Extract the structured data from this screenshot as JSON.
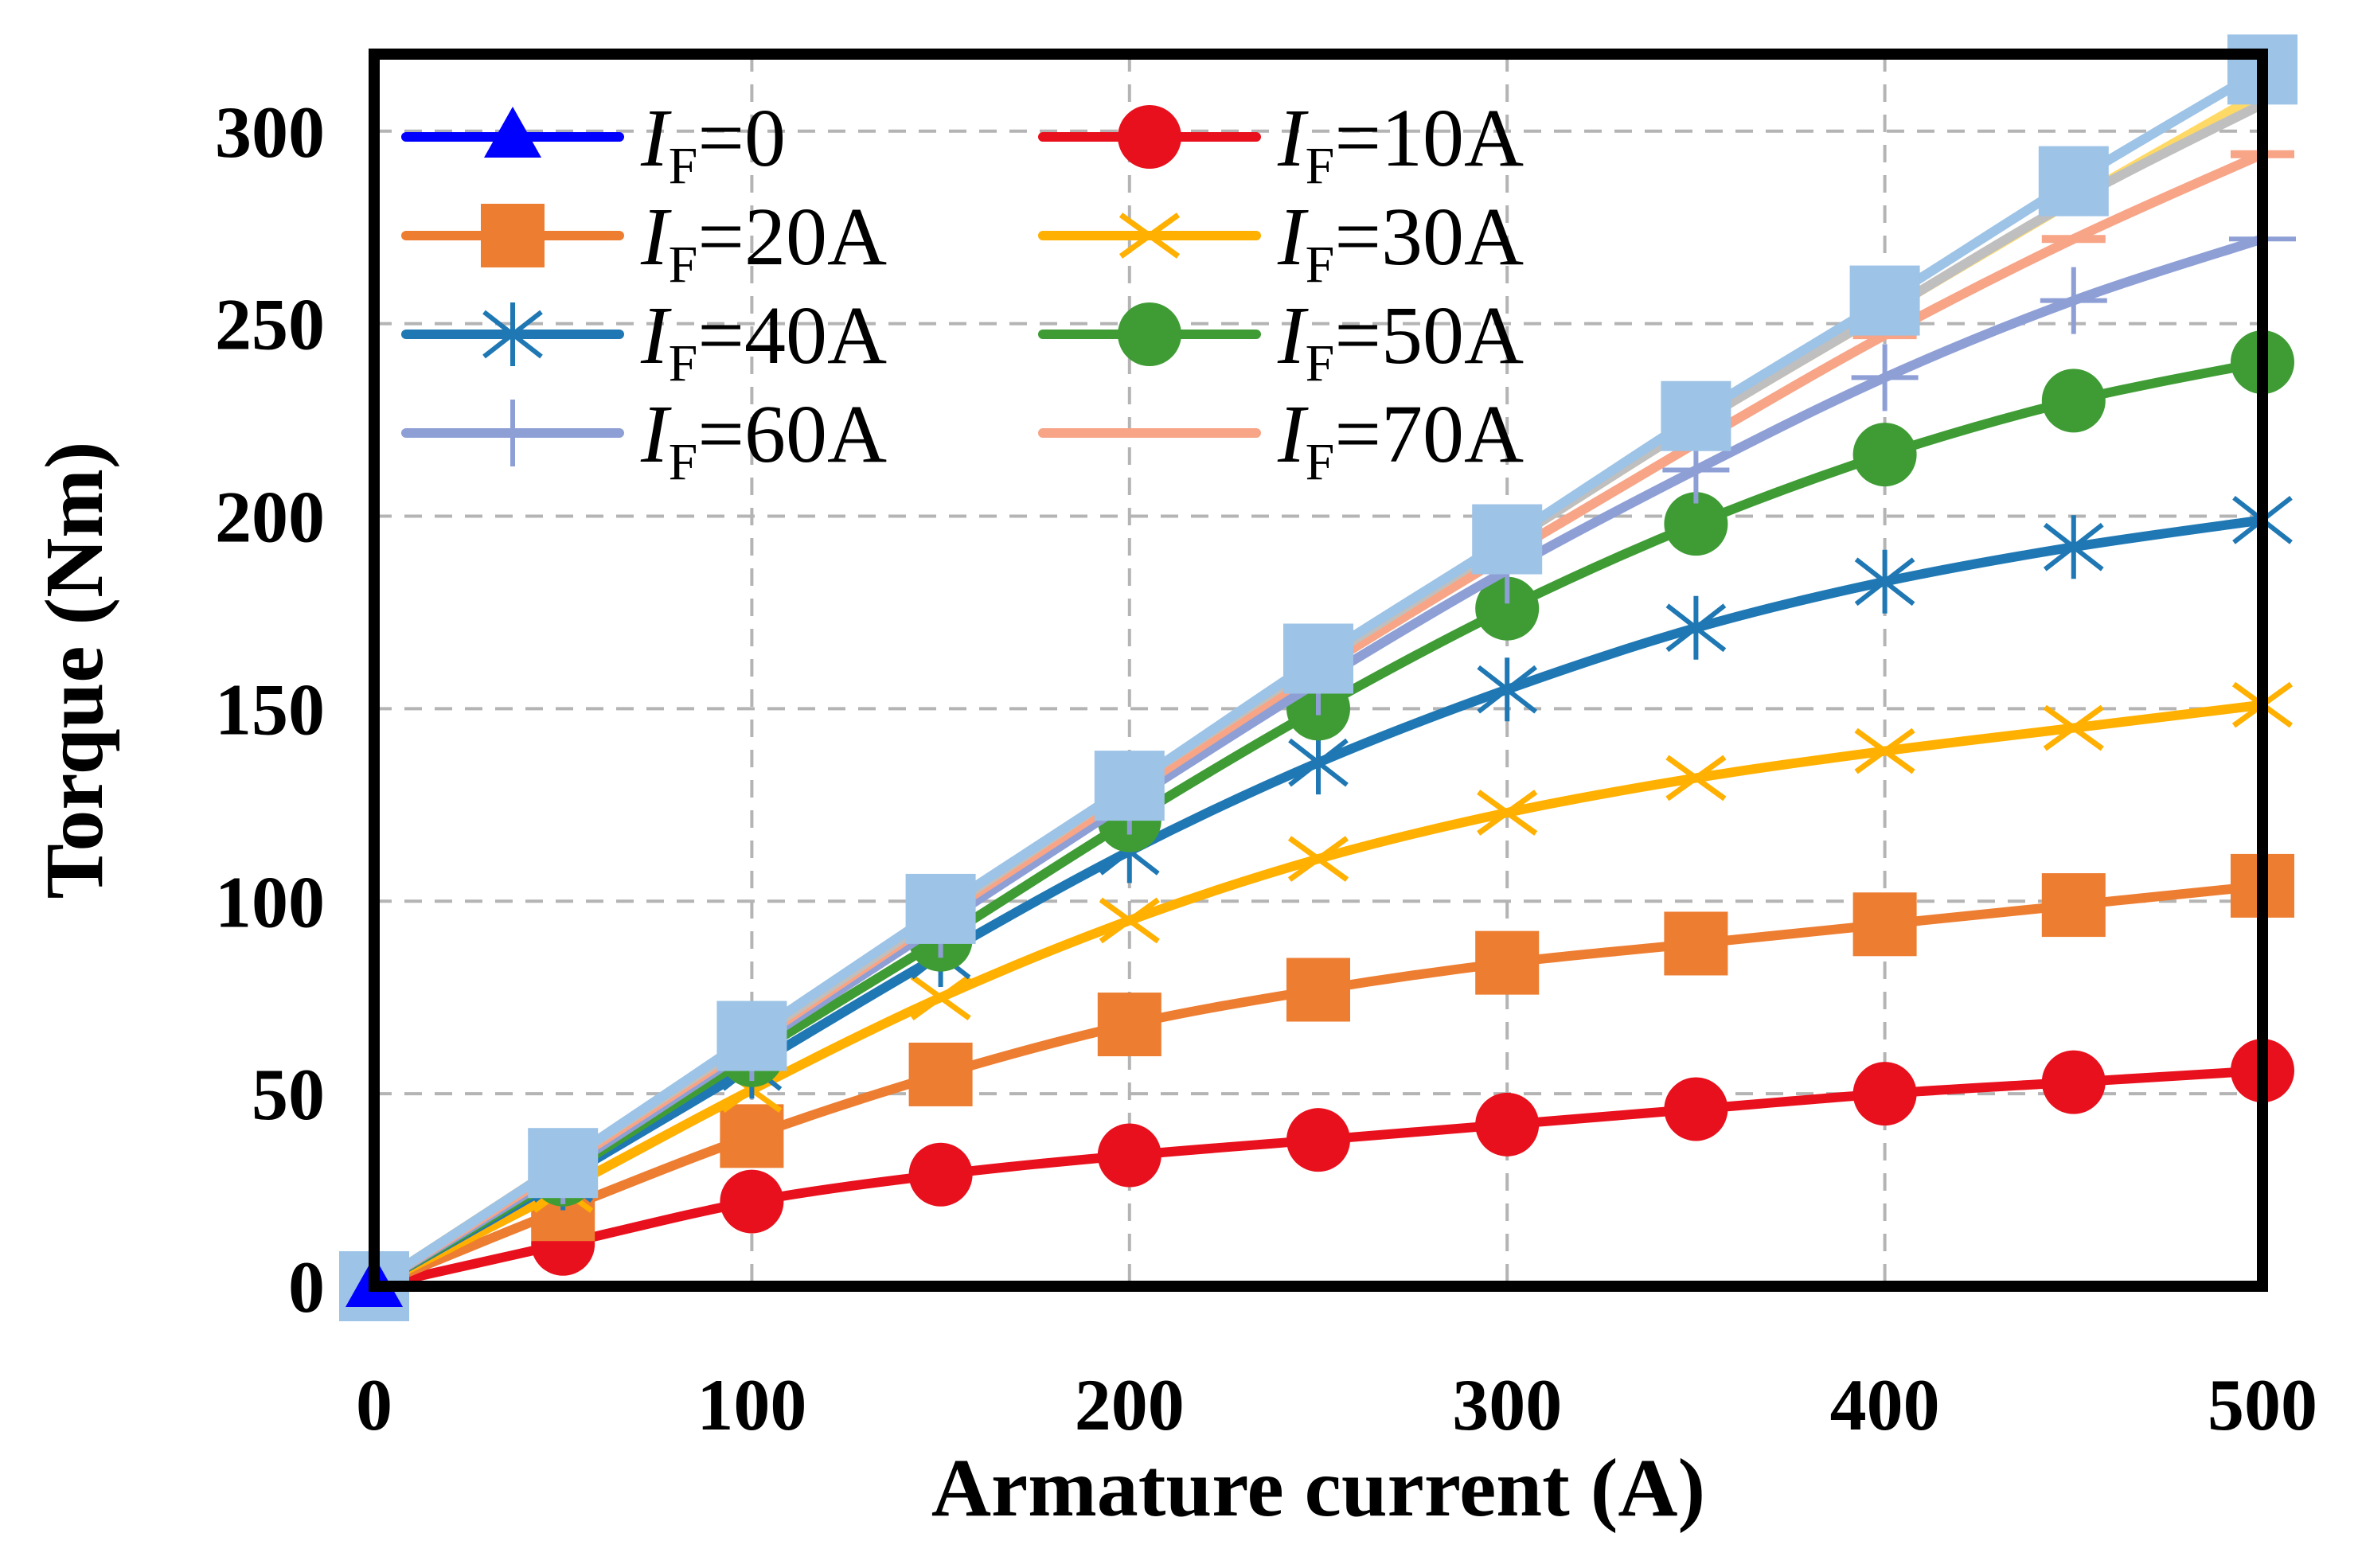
{
  "chart_data": {
    "type": "line",
    "title": "",
    "xlabel": "Armature current (A)",
    "ylabel": "Torque (Nm)",
    "xlim": [
      0,
      500
    ],
    "ylim": [
      0,
      320
    ],
    "xticks": [
      0,
      100,
      200,
      300,
      400,
      500
    ],
    "yticks": [
      0,
      50,
      100,
      150,
      200,
      250,
      300
    ],
    "xtick_labels": [
      "0",
      "100",
      "200",
      "300",
      "400",
      "500"
    ],
    "ytick_labels": [
      "0",
      "50",
      "100",
      "150",
      "200",
      "250",
      "300"
    ],
    "grid": true,
    "legend_position": "top-left",
    "x": [
      0,
      50,
      100,
      150,
      200,
      250,
      300,
      350,
      400,
      450,
      500
    ],
    "series": [
      {
        "name": "IF=0",
        "var": "I",
        "sub": "F",
        "rest": "=0",
        "color": "#0000ff",
        "marker": "triangle",
        "values": [
          0,
          0,
          0,
          0,
          0,
          0,
          0,
          0,
          0,
          0,
          0
        ]
      },
      {
        "name": "IF=10A",
        "var": "I",
        "sub": "F",
        "rest": "=10A",
        "color": "#e8101c",
        "marker": "circle",
        "values": [
          0,
          11,
          22,
          29,
          34,
          38,
          42,
          46,
          50,
          53,
          56
        ]
      },
      {
        "name": "IF=20A",
        "var": "I",
        "sub": "F",
        "rest": "=20A",
        "color": "#ed7d31",
        "marker": "square",
        "values": [
          0,
          20,
          39,
          55,
          68,
          77,
          84,
          89,
          94,
          99,
          104
        ]
      },
      {
        "name": "IF=30A",
        "var": "I",
        "sub": "F",
        "rest": "=30A",
        "color": "#ffb000",
        "marker": "x",
        "values": [
          0,
          25,
          51,
          75,
          95,
          111,
          123,
          132,
          139,
          145,
          151
        ]
      },
      {
        "name": "IF=40A",
        "var": "I",
        "sub": "F",
        "rest": "=40A",
        "color": "#1f78b4",
        "marker": "asterisk",
        "values": [
          0,
          28,
          57,
          86,
          113,
          136,
          155,
          171,
          183,
          192,
          199
        ]
      },
      {
        "name": "IF=50A",
        "var": "I",
        "sub": "F",
        "rest": "=50A",
        "color": "#3f9c35",
        "marker": "circle",
        "values": [
          0,
          29,
          60,
          90,
          121,
          150,
          176,
          198,
          216,
          230,
          240
        ]
      },
      {
        "name": "IF=60A",
        "var": "I",
        "sub": "F",
        "rest": "=60A",
        "color": "#8e9fd6",
        "marker": "plus",
        "values": [
          0,
          30,
          62,
          94,
          126,
          157,
          186,
          212,
          236,
          256,
          272
        ]
      },
      {
        "name": "IF=70A",
        "var": "I",
        "sub": "F",
        "rest": "=70A",
        "color": "#f7a487",
        "marker": "dash",
        "values": [
          0,
          31,
          63,
          96,
          128,
          160,
          190,
          219,
          247,
          272,
          294
        ]
      },
      {
        "name": "",
        "color": "#ffd966",
        "marker": "none",
        "legend": false,
        "values": [
          0,
          32,
          64,
          97,
          130,
          162,
          193,
          224,
          253,
          282,
          310
        ]
      },
      {
        "name": "",
        "color": "#bfbfbf",
        "marker": "none",
        "legend": false,
        "values": [
          0,
          32,
          64,
          97,
          130,
          162,
          193,
          224,
          253,
          282,
          307
        ]
      },
      {
        "name": "",
        "color": "#9dc3e6",
        "marker": "square",
        "legend": false,
        "values": [
          0,
          32,
          65,
          98,
          130,
          163,
          194,
          226,
          256,
          287,
          316
        ]
      }
    ]
  }
}
